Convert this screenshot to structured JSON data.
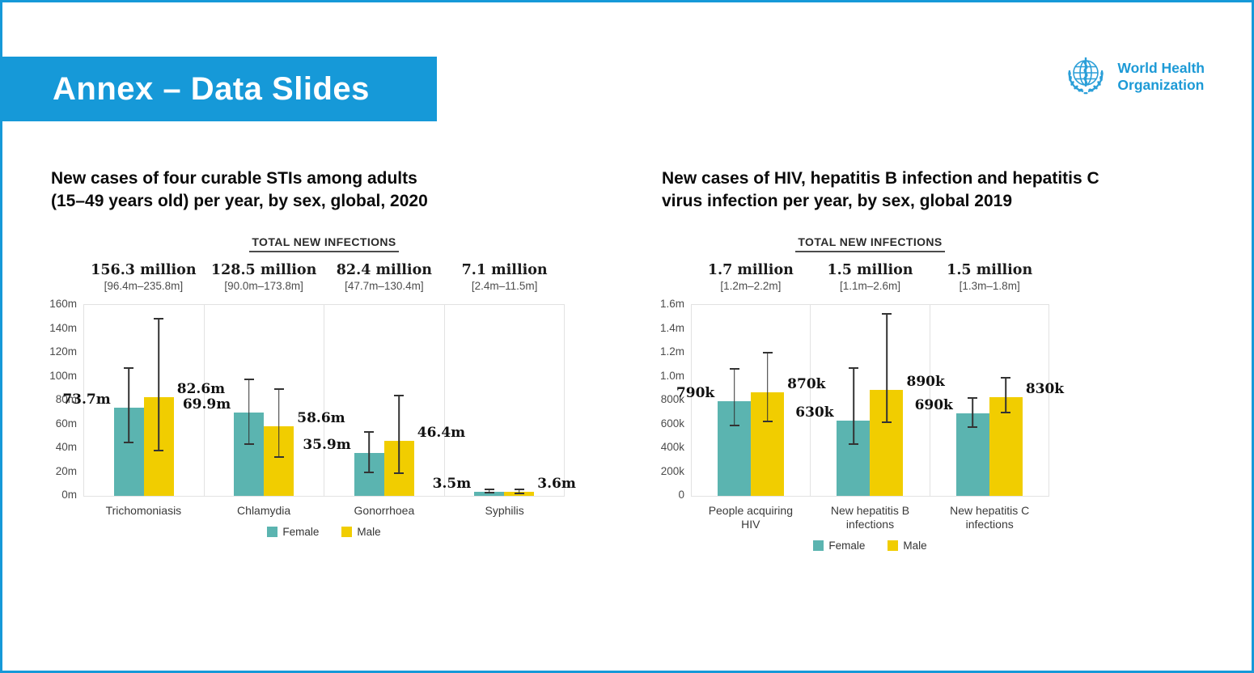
{
  "slide": {
    "banner_title": "Annex – Data Slides",
    "logo": {
      "line1": "World Health",
      "line2": "Organization"
    },
    "colors": {
      "accent_blue": "#1699d8",
      "logo_blue": "#1d9ad6",
      "female_teal": "#5bb4b0",
      "male_yellow": "#f1cd00",
      "error_bar": "#333333"
    }
  },
  "chart_data": [
    {
      "type": "bar",
      "title_lines": [
        "New cases of four curable STIs among adults",
        "(15–49 years old) per year, by sex, global, 2020"
      ],
      "header": "TOTAL NEW INFECTIONS",
      "unit": "millions",
      "ylim": [
        0,
        160
      ],
      "grid": false,
      "legend_position": "bottom",
      "yticks": [
        {
          "value": 0,
          "label": "0m"
        },
        {
          "value": 20,
          "label": "20m"
        },
        {
          "value": 40,
          "label": "40m"
        },
        {
          "value": 60,
          "label": "60m"
        },
        {
          "value": 80,
          "label": "80m"
        },
        {
          "value": 100,
          "label": "100m"
        },
        {
          "value": 120,
          "label": "120m"
        },
        {
          "value": 140,
          "label": "140m"
        },
        {
          "value": 160,
          "label": "160m"
        }
      ],
      "legend": [
        "Female",
        "Male"
      ],
      "groups": [
        {
          "category": "Trichomoniasis",
          "total": "156.3 million",
          "ci": "[96.4m–235.8m]",
          "female": {
            "value": 73.7,
            "label": "73.7m",
            "lo": 44,
            "hi": 108
          },
          "male": {
            "value": 82.6,
            "label": "82.6m",
            "lo": 37,
            "hi": 149
          }
        },
        {
          "category": "Chlamydia",
          "total": "128.5 million",
          "ci": "[90.0m–173.8m]",
          "female": {
            "value": 69.9,
            "label": "69.9m",
            "lo": 43,
            "hi": 98
          },
          "male": {
            "value": 58.6,
            "label": "58.6m",
            "lo": 32,
            "hi": 90
          }
        },
        {
          "category": "Gonorrhoea",
          "total": "82.4 million",
          "ci": "[47.7m–130.4m]",
          "female": {
            "value": 35.9,
            "label": "35.9m",
            "lo": 19,
            "hi": 54
          },
          "male": {
            "value": 46.4,
            "label": "46.4m",
            "lo": 18,
            "hi": 85
          }
        },
        {
          "category": "Syphilis",
          "total": "7.1 million",
          "ci": "[2.4m–11.5m]",
          "female": {
            "value": 3.5,
            "label": "3.5m",
            "lo": 1.8,
            "hi": 5.8
          },
          "male": {
            "value": 3.6,
            "label": "3.6m",
            "lo": 1.5,
            "hi": 6.2
          }
        }
      ]
    },
    {
      "type": "bar",
      "title_lines": [
        "New cases of HIV, hepatitis B infection and hepatitis C",
        "virus infection per year, by sex, global 2019"
      ],
      "header": "TOTAL NEW INFECTIONS",
      "unit": "thousands",
      "ylim": [
        0,
        1600
      ],
      "grid": false,
      "legend_position": "bottom",
      "yticks": [
        {
          "value": 0,
          "label": "0"
        },
        {
          "value": 200,
          "label": "200k"
        },
        {
          "value": 400,
          "label": "400k"
        },
        {
          "value": 600,
          "label": "600k"
        },
        {
          "value": 800,
          "label": "800k"
        },
        {
          "value": 1000,
          "label": "1.0m"
        },
        {
          "value": 1200,
          "label": "1.2m"
        },
        {
          "value": 1400,
          "label": "1.4m"
        },
        {
          "value": 1600,
          "label": "1.6m"
        }
      ],
      "legend": [
        "Female",
        "Male"
      ],
      "groups": [
        {
          "category": "People acquiring HIV",
          "category_lines": [
            "People acquiring",
            "HIV"
          ],
          "total": "1.7 million",
          "ci": "[1.2m–2.2m]",
          "female": {
            "value": 790,
            "label": "790k",
            "lo": 580,
            "hi": 1070
          },
          "male": {
            "value": 870,
            "label": "870k",
            "lo": 620,
            "hi": 1210
          }
        },
        {
          "category": "New hepatitis B infections",
          "category_lines": [
            "New hepatitis B",
            "infections"
          ],
          "total": "1.5 million",
          "ci": "[1.1m–2.6m]",
          "female": {
            "value": 630,
            "label": "630k",
            "lo": 430,
            "hi": 1080
          },
          "male": {
            "value": 890,
            "label": "890k",
            "lo": 610,
            "hi": 1530
          }
        },
        {
          "category": "New hepatitis C infections",
          "category_lines": [
            "New hepatitis C",
            "infections"
          ],
          "total": "1.5 million",
          "ci": "[1.3m–1.8m]",
          "female": {
            "value": 690,
            "label": "690k",
            "lo": 570,
            "hi": 830
          },
          "male": {
            "value": 830,
            "label": "830k",
            "lo": 690,
            "hi": 1000
          }
        }
      ]
    }
  ]
}
